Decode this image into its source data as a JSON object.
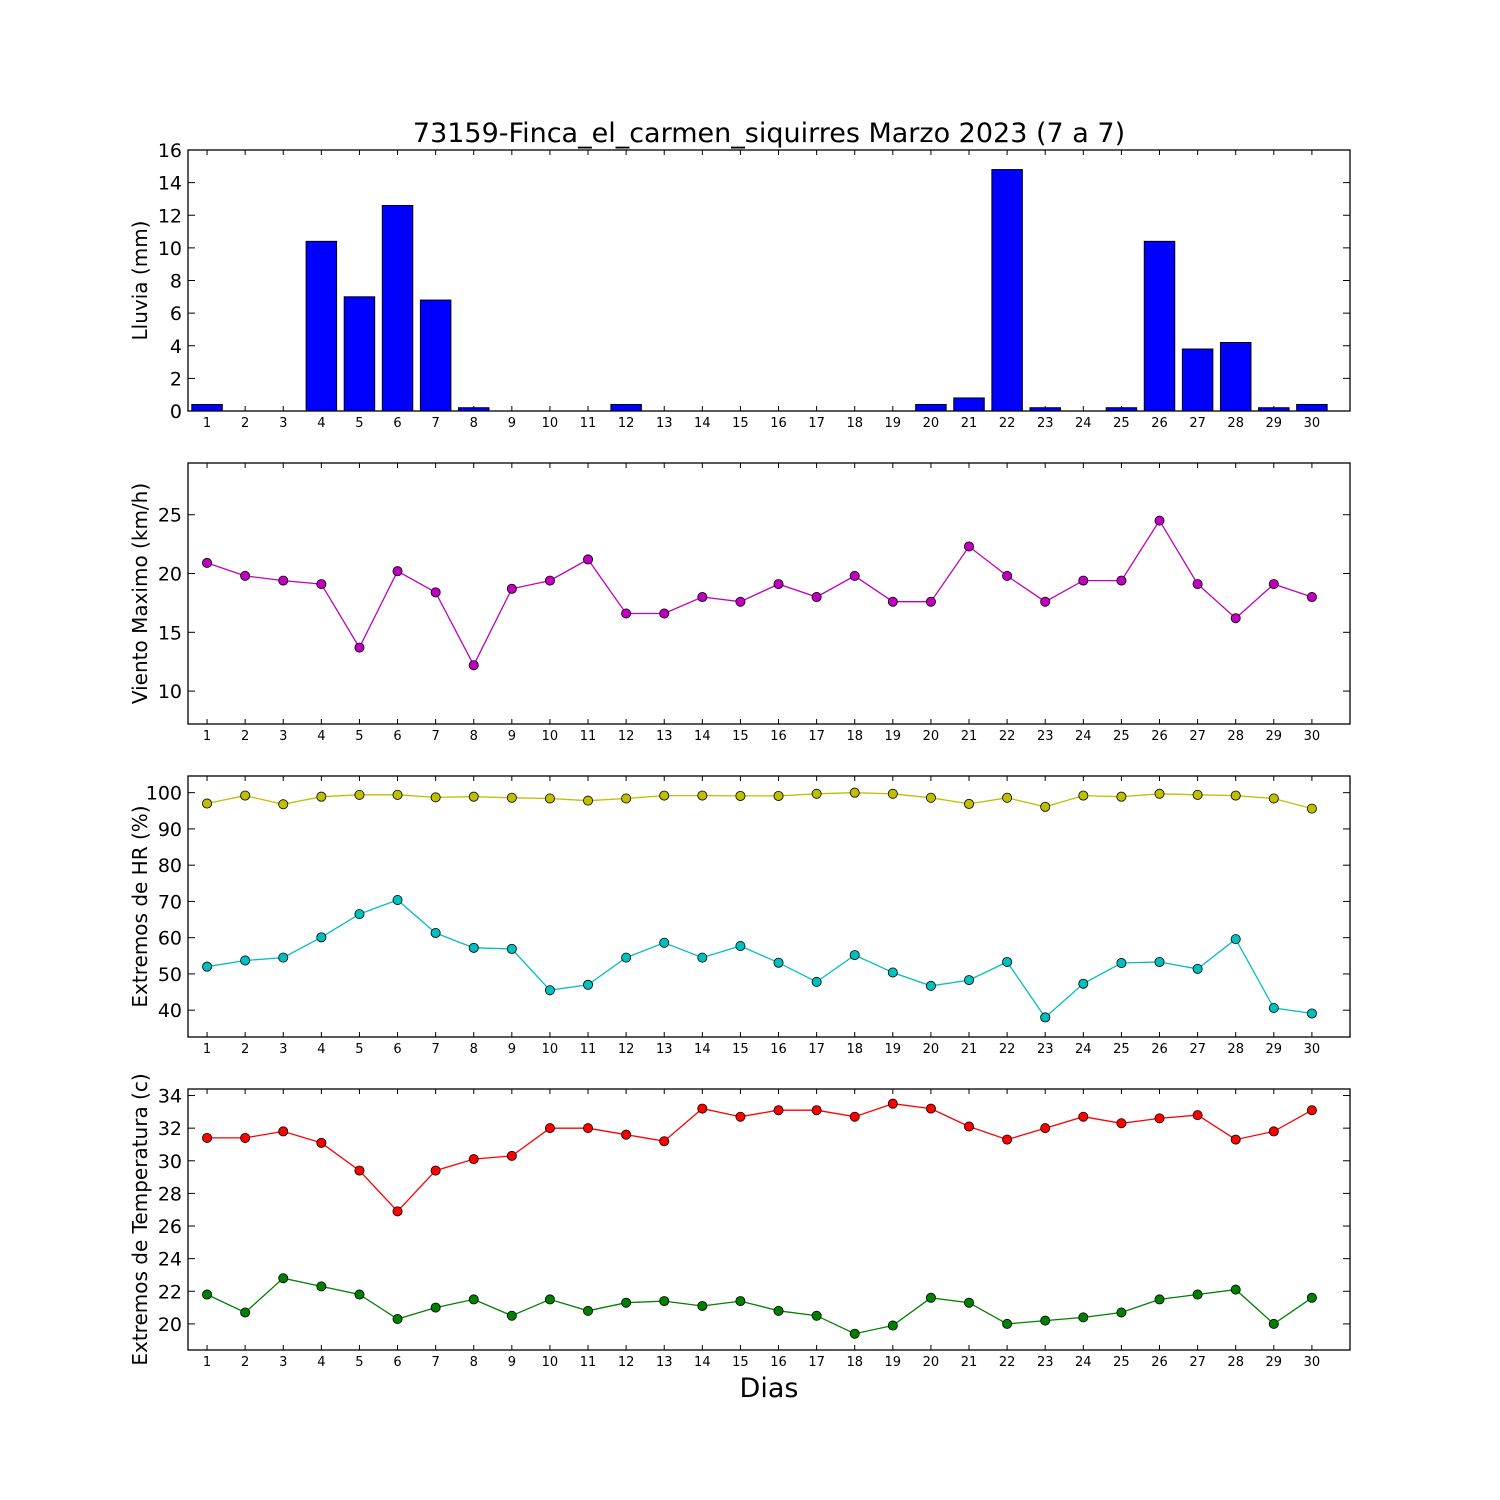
{
  "figure": {
    "title": "73159-Finca_el_carmen_siquirres Marzo 2023  (7 a 7)",
    "xlabel": "Dias"
  },
  "chart_data": [
    {
      "type": "bar",
      "ylabel": "Lluvia (mm)",
      "x": [
        1,
        2,
        3,
        4,
        5,
        6,
        7,
        8,
        9,
        10,
        11,
        12,
        13,
        14,
        15,
        16,
        17,
        18,
        19,
        20,
        21,
        22,
        23,
        24,
        25,
        26,
        27,
        28,
        29,
        30
      ],
      "ylim": [
        0,
        16
      ],
      "yticks": [
        0,
        2,
        4,
        6,
        8,
        10,
        12,
        14,
        16
      ],
      "series": [
        {
          "color": "#0000ff",
          "values": [
            0.4,
            0,
            0,
            10.4,
            7.0,
            12.6,
            6.8,
            0.2,
            0,
            0,
            0,
            0.4,
            0,
            0,
            0,
            0,
            0,
            0,
            0,
            0.4,
            0.8,
            14.8,
            0.2,
            0,
            0.2,
            10.4,
            3.8,
            4.2,
            0.2,
            0.4
          ]
        }
      ]
    },
    {
      "type": "line",
      "ylabel": "Viento Maximo (km/h)",
      "x": [
        1,
        2,
        3,
        4,
        5,
        6,
        7,
        8,
        9,
        10,
        11,
        12,
        13,
        14,
        15,
        16,
        17,
        18,
        19,
        20,
        21,
        22,
        23,
        24,
        25,
        26,
        27,
        28,
        29,
        30
      ],
      "ylim": [
        7.2,
        29.4
      ],
      "yticks": [
        10,
        15,
        20,
        25
      ],
      "series": [
        {
          "color": "#bf00bf",
          "values": [
            20.9,
            19.8,
            19.4,
            19.1,
            13.7,
            20.2,
            18.4,
            12.2,
            18.7,
            19.4,
            21.2,
            16.6,
            16.6,
            18.0,
            17.6,
            19.1,
            18.0,
            19.8,
            17.6,
            17.6,
            22.3,
            19.8,
            17.6,
            19.4,
            19.4,
            24.5,
            19.1,
            16.2,
            19.1,
            18.0
          ]
        }
      ]
    },
    {
      "type": "line",
      "ylabel": "Extremos de HR (%)",
      "x": [
        1,
        2,
        3,
        4,
        5,
        6,
        7,
        8,
        9,
        10,
        11,
        12,
        13,
        14,
        15,
        16,
        17,
        18,
        19,
        20,
        21,
        22,
        23,
        24,
        25,
        26,
        27,
        28,
        29,
        30
      ],
      "ylim": [
        32.6,
        104.6
      ],
      "yticks": [
        40,
        50,
        60,
        70,
        80,
        90,
        100
      ],
      "series": [
        {
          "color": "#bfbf00",
          "values": [
            97,
            99.2,
            96.8,
            98.9,
            99.4,
            99.4,
            98.7,
            98.9,
            98.6,
            98.4,
            97.8,
            98.4,
            99.2,
            99.2,
            99.1,
            99.1,
            99.7,
            100,
            99.7,
            98.6,
            96.9,
            98.6,
            96.1,
            99.2,
            98.9,
            99.7,
            99.4,
            99.2,
            98.4,
            95.6
          ]
        },
        {
          "color": "#00bfbf",
          "values": [
            52,
            53.7,
            54.5,
            60.1,
            66.5,
            70.4,
            61.3,
            57.2,
            56.9,
            45.5,
            47,
            54.5,
            58.6,
            54.5,
            57.7,
            53.1,
            47.8,
            55.2,
            50.4,
            46.7,
            48.3,
            53.3,
            38,
            47.3,
            53,
            53.3,
            51.4,
            59.6,
            40.6,
            39.1
          ]
        }
      ]
    },
    {
      "type": "line",
      "ylabel": "Extremos de Temperatura (c)",
      "x": [
        1,
        2,
        3,
        4,
        5,
        6,
        7,
        8,
        9,
        10,
        11,
        12,
        13,
        14,
        15,
        16,
        17,
        18,
        19,
        20,
        21,
        22,
        23,
        24,
        25,
        26,
        27,
        28,
        29,
        30
      ],
      "ylim": [
        18.4,
        34.4
      ],
      "yticks": [
        20,
        22,
        24,
        26,
        28,
        30,
        32,
        34
      ],
      "series": [
        {
          "color": "#ff0000",
          "values": [
            31.4,
            31.4,
            31.8,
            31.1,
            29.4,
            26.9,
            29.4,
            30.1,
            30.3,
            32,
            32,
            31.6,
            31.2,
            33.2,
            32.7,
            33.1,
            33.1,
            32.7,
            33.5,
            33.2,
            32.1,
            31.3,
            32,
            32.7,
            32.3,
            32.6,
            32.8,
            31.3,
            31.8,
            33.1
          ]
        },
        {
          "color": "#008000",
          "values": [
            21.8,
            20.7,
            22.8,
            22.3,
            21.8,
            20.3,
            21,
            21.5,
            20.5,
            21.5,
            20.8,
            21.3,
            21.4,
            21.1,
            21.4,
            20.8,
            20.5,
            19.4,
            19.9,
            21.6,
            21.3,
            20,
            20.2,
            20.4,
            20.7,
            21.5,
            21.8,
            22.1,
            20,
            21.6
          ]
        }
      ]
    }
  ]
}
